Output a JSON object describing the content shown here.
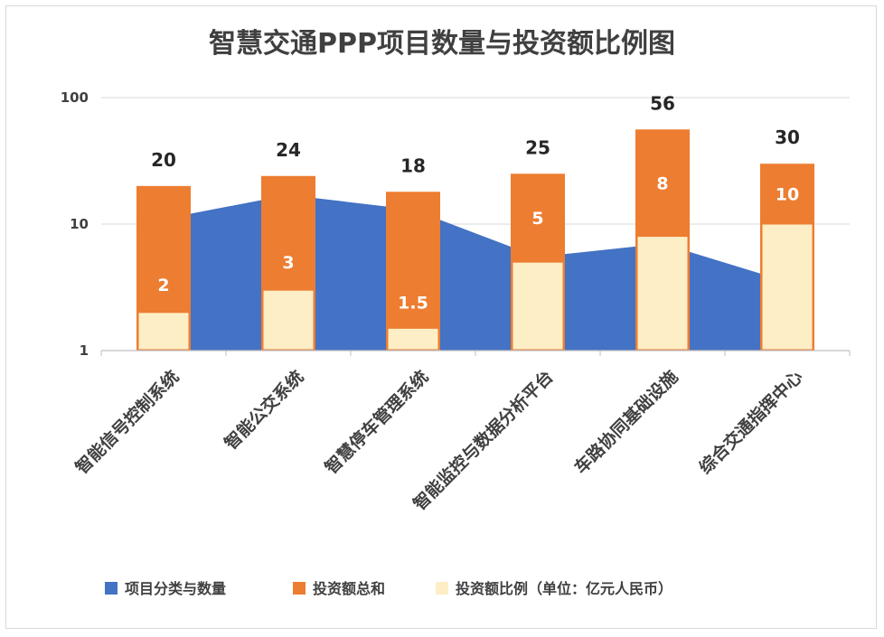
{
  "chart_data": {
    "type": "bar",
    "title": "智慧交通PPP项目数量与投资额比例图",
    "y_scale": "log",
    "ylim": [
      1,
      100
    ],
    "y_ticks": [
      "1",
      "10",
      "100"
    ],
    "y_tick_values": [
      1,
      10,
      100
    ],
    "categories": [
      "智能信号控制系统",
      "智能公交系统",
      "智慧停车管理系统",
      "智能监控与数据分析平台",
      "车路协同基础设施",
      "综合交通指挥中心"
    ],
    "series": [
      {
        "name": "项目分类与数量",
        "kind": "area",
        "color": "#4472c4",
        "values": [
          11,
          17,
          13,
          5.5,
          7,
          3.5
        ]
      },
      {
        "name": "投资额总和",
        "kind": "bar",
        "color": "#ed7d31",
        "values": [
          20,
          24,
          18,
          25,
          56,
          30
        ],
        "labels": [
          "20",
          "24",
          "18",
          "25",
          "56",
          "30"
        ]
      },
      {
        "name": "投资额比例（单位：亿元人民币）",
        "kind": "bar",
        "color": "#fdeec6",
        "values": [
          2,
          3,
          1.5,
          5,
          8,
          10
        ],
        "labels": [
          "2",
          "3",
          "1.5",
          "5",
          "8",
          "10"
        ]
      }
    ],
    "legend_position": "bottom",
    "grid": true
  }
}
